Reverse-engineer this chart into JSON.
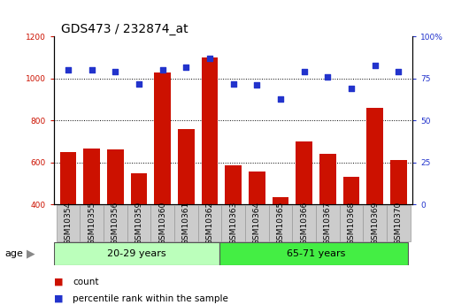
{
  "title": "GDS473 / 232874_at",
  "samples": [
    "GSM10354",
    "GSM10355",
    "GSM10356",
    "GSM10359",
    "GSM10360",
    "GSM10361",
    "GSM10362",
    "GSM10363",
    "GSM10364",
    "GSM10365",
    "GSM10366",
    "GSM10367",
    "GSM10368",
    "GSM10369",
    "GSM10370"
  ],
  "counts": [
    650,
    668,
    660,
    550,
    1030,
    760,
    1100,
    585,
    555,
    435,
    700,
    640,
    530,
    860,
    610
  ],
  "percentiles_pct": [
    80,
    80,
    79,
    72,
    80,
    82,
    87,
    72,
    71,
    63,
    79,
    76,
    69,
    83,
    79
  ],
  "group1_label": "20-29 years",
  "group2_label": "65-71 years",
  "group1_count": 7,
  "group2_count": 8,
  "ylim_left": [
    400,
    1200
  ],
  "ylim_right": [
    0,
    100
  ],
  "yticks_left": [
    400,
    600,
    800,
    1000,
    1200
  ],
  "yticks_right": [
    0,
    25,
    50,
    75,
    100
  ],
  "bar_color": "#cc1100",
  "dot_color": "#2233cc",
  "group1_color": "#bbffbb",
  "group2_color": "#44ee44",
  "xtick_bg_color": "#cccccc",
  "age_label": "age",
  "legend1": "count",
  "legend2": "percentile rank within the sample",
  "title_fontsize": 10,
  "tick_fontsize": 6.5,
  "legend_fontsize": 7.5,
  "group_fontsize": 8
}
